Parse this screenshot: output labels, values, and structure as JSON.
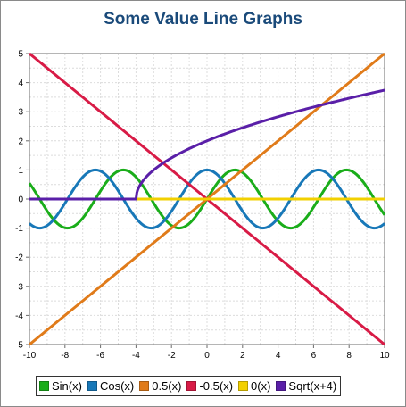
{
  "chart_data": {
    "type": "line",
    "title": "Some Value Line Graphs",
    "xlabel": "",
    "ylabel": "",
    "xlim": [
      -10,
      10
    ],
    "ylim": [
      -5,
      5
    ],
    "x_ticks": [
      "-10",
      "-8",
      "-6",
      "-4",
      "-2",
      "0",
      "2",
      "4",
      "6",
      "8",
      "10"
    ],
    "y_ticks": [
      "5",
      "4",
      "3",
      "2",
      "1",
      "0",
      "-1",
      "-2",
      "-3",
      "-4",
      "-5"
    ],
    "grid": true,
    "legend_position": "bottom",
    "x": [
      -10,
      -9,
      -8,
      -7,
      -6,
      -5,
      -4,
      -3,
      -2,
      -1,
      0,
      1,
      2,
      3,
      4,
      5,
      6,
      7,
      8,
      9,
      10
    ],
    "series": [
      {
        "name": "Sin(x)",
        "color": "#1aad1a",
        "values": [
          0.54,
          -0.41,
          -0.99,
          -0.66,
          0.28,
          0.96,
          0.76,
          -0.14,
          -0.91,
          -0.84,
          0.0,
          0.84,
          0.91,
          0.14,
          -0.76,
          -0.96,
          -0.28,
          0.66,
          0.99,
          0.41,
          -0.54
        ]
      },
      {
        "name": "Cos(x)",
        "color": "#1878b8",
        "values": [
          -0.84,
          -0.91,
          -0.15,
          0.75,
          0.96,
          0.28,
          -0.65,
          -0.99,
          -0.42,
          0.54,
          1.0,
          0.54,
          -0.42,
          -0.99,
          -0.65,
          0.28,
          0.96,
          0.75,
          -0.15,
          -0.91,
          -0.84
        ]
      },
      {
        "name": "0.5(x)",
        "color": "#e07b1a",
        "values": [
          -5,
          -4.5,
          -4,
          -3.5,
          -3,
          -2.5,
          -2,
          -1.5,
          -1,
          -0.5,
          0,
          0.5,
          1,
          1.5,
          2,
          2.5,
          3,
          3.5,
          4,
          4.5,
          5
        ]
      },
      {
        "name": "-0.5(x)",
        "color": "#d81b46",
        "values": [
          5,
          4.5,
          4,
          3.5,
          3,
          2.5,
          2,
          1.5,
          1,
          0.5,
          0,
          -0.5,
          -1,
          -1.5,
          -2,
          -2.5,
          -3,
          -3.5,
          -4,
          -4.5,
          -5
        ]
      },
      {
        "name": "0(x)",
        "color": "#f2d000",
        "values": [
          0,
          0,
          0,
          0,
          0,
          0,
          0,
          0,
          0,
          0,
          0,
          0,
          0,
          0,
          0,
          0,
          0,
          0,
          0,
          0,
          0
        ]
      },
      {
        "name": "Sqrt(x+4)",
        "color": "#5a1fa8",
        "values": [
          0,
          0,
          0,
          0,
          0,
          0,
          0,
          1.0,
          1.41,
          1.73,
          2.0,
          2.24,
          2.45,
          2.65,
          2.83,
          3.0,
          3.16,
          3.32,
          3.46,
          3.61,
          3.74
        ]
      }
    ]
  }
}
